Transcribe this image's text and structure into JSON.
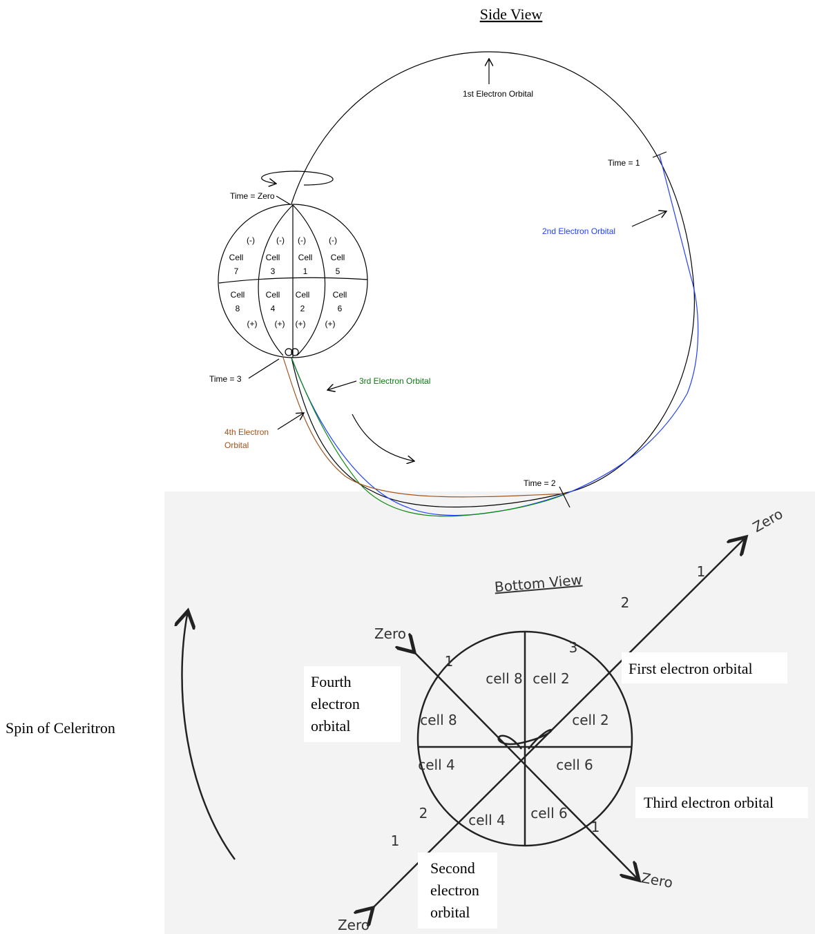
{
  "side_view": {
    "title": "Side View",
    "orbital_1": "1st Electron Orbital",
    "orbital_2": "2nd Electron Orbital",
    "orbital_3": "3rd Electron Orbital",
    "orbital_4": [
      "4th Electron",
      "Orbital"
    ],
    "time_zero": "Time = Zero",
    "time_1": "Time = 1",
    "time_2": "Time = 2",
    "time_3": "Time = 3",
    "cells": [
      {
        "sign": "(-)",
        "word": "Cell",
        "number": "7"
      },
      {
        "sign": "(-)",
        "word": "Cell",
        "number": "3"
      },
      {
        "sign": "(-)",
        "word": "Cell",
        "number": "1"
      },
      {
        "sign": "(-)",
        "word": "Cell",
        "number": "5"
      },
      {
        "sign": "(+)",
        "word": "Cell",
        "number": "8"
      },
      {
        "sign": "(+)",
        "word": "Cell",
        "number": "4"
      },
      {
        "sign": "(+)",
        "word": "Cell",
        "number": "2"
      },
      {
        "sign": "(+)",
        "word": "Cell",
        "number": "6"
      }
    ]
  },
  "bottom_view": {
    "title": "Bottom View",
    "zero_labels": [
      "Zero",
      "Zero",
      "Zero",
      "Zero"
    ],
    "ticks": [
      "1",
      "2",
      "3",
      "1",
      "2",
      "1",
      "1"
    ],
    "cells": [
      "cell 8",
      "cell 2",
      "cell 8",
      "cell 2",
      "cell 4",
      "cell 6",
      "cell 4",
      "cell 6"
    ],
    "first_orbital": "First electron orbital",
    "fourth_orbital": [
      "Fourth",
      "electron",
      "orbital"
    ],
    "third_orbital": "Third electron orbital",
    "second_orbital": [
      "Second",
      "electron",
      "orbital"
    ],
    "spin": "Spin of Celeritron"
  }
}
